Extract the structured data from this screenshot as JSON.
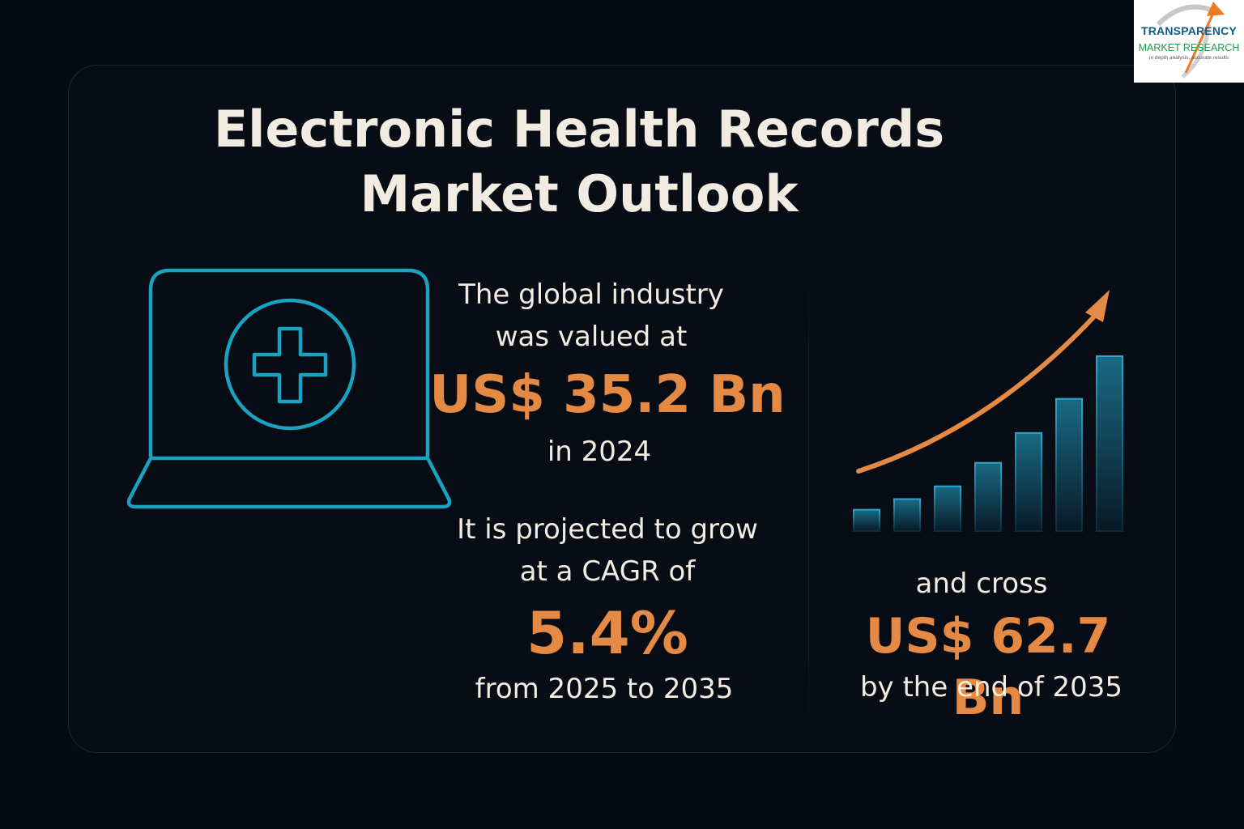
{
  "title_line1": "Electronic Health Records",
  "title_line2": "Market Outlook",
  "left": {
    "intro_line1": "The global industry",
    "intro_line2": "was valued at",
    "value": "US$ 35.2 Bn",
    "year": "in 2024",
    "proj_line1": "It is projected to grow",
    "proj_line2": "at a CAGR of",
    "cagr": "5.4%",
    "period": "from 2025 to 2035"
  },
  "right": {
    "line1": "and cross",
    "value": "US$ 62.7 Bn",
    "line2": "by the end of 2035"
  },
  "logo": {
    "line1": "TRANSPARENCY",
    "line2": "MARKET RESEARCH",
    "line3": "in depth analysis, accurate results"
  },
  "icons": {
    "laptop": "laptop-medical-icon",
    "chart": "growth-chart-icon"
  },
  "chart_data": {
    "type": "bar",
    "values": [
      1,
      1.5,
      2.1,
      3.2,
      4.6,
      6.2,
      8.2
    ],
    "trend": "increasing"
  },
  "colors": {
    "background": "#060b13",
    "accent": "#e58a44",
    "icon": "#1aa3c0",
    "text": "#f3ece2"
  }
}
